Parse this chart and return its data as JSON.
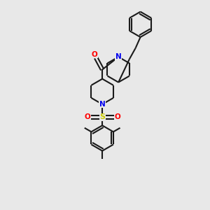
{
  "background_color": "#e8e8e8",
  "bond_color": "#1a1a1a",
  "nitrogen_color": "#0000ee",
  "oxygen_color": "#ff0000",
  "sulfur_color": "#cccc00",
  "line_width": 1.5,
  "figsize": [
    3.0,
    3.0
  ],
  "dpi": 100,
  "xlim": [
    -2.8,
    2.8
  ],
  "ylim": [
    -4.8,
    3.8
  ]
}
